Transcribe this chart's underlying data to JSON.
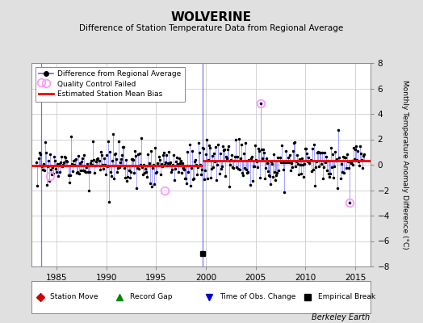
{
  "title": "WOLVERINE",
  "subtitle": "Difference of Station Temperature Data from Regional Average",
  "ylabel": "Monthly Temperature Anomaly Difference (°C)",
  "xlabel_ticks": [
    1985,
    1990,
    1995,
    2000,
    2005,
    2010,
    2015
  ],
  "ylim": [
    -8,
    8
  ],
  "xlim": [
    1982.5,
    2016.5
  ],
  "bias_before_2000": -0.05,
  "bias_after_2000": 0.3,
  "bias_color": "#FF0000",
  "line_color": "#6666FF",
  "marker_color": "#000000",
  "qc_color": "#FF99FF",
  "background_color": "#E0E0E0",
  "plot_bg_color": "#FFFFFF",
  "grid_color": "#CCCCCC",
  "station_move_color": "#CC0000",
  "time_obs_color": "#0000CC",
  "empirical_break_color": "#000000",
  "watermark": "Berkeley Earth",
  "station_move_x": 1983.42,
  "obs_change_x": 1999.67,
  "empirical_break_x": 1999.67,
  "empirical_break_y": -7.0,
  "spike1_x": 1983.42,
  "spike1_y": 6.5,
  "spike2_x": 2005.5,
  "spike2_y": 4.8,
  "spike3_x": 2014.42,
  "spike3_y": -3.0,
  "qc_points": [
    [
      1983.42,
      6.5
    ],
    [
      1984.33,
      -0.9
    ],
    [
      1995.83,
      -2.0
    ],
    [
      2005.5,
      4.8
    ],
    [
      2014.42,
      -3.0
    ]
  ],
  "seed": 17
}
